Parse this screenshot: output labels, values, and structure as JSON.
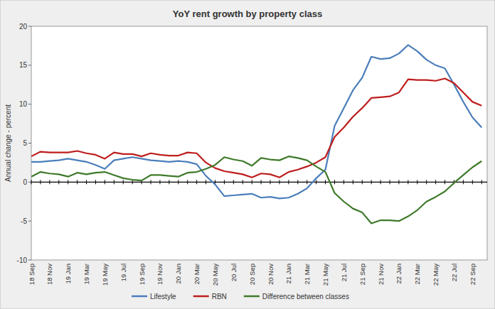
{
  "chart_data": {
    "type": "line",
    "title": "YoY rent growth by property class",
    "y_label": "Annual change - percent",
    "categories": [
      "18 Sep",
      null,
      "18 Nov",
      null,
      "19 Jan",
      null,
      "19 Mar",
      null,
      "19 May",
      null,
      "19 Jul",
      null,
      "19 Sep",
      null,
      "19 Nov",
      null,
      "20 Jan",
      null,
      "20 Mar",
      null,
      "20 May",
      null,
      "20 Jul",
      null,
      "20 Sep",
      null,
      "20 Nov",
      null,
      "21 Jan",
      null,
      "21 Mar",
      null,
      "21 May",
      null,
      "21 Jul",
      null,
      "21 Sep",
      null,
      "21 Nov",
      null,
      "22 Jan",
      null,
      "22 Mar",
      null,
      "22 May",
      null,
      "22 Jul",
      null,
      "22 Sep",
      null
    ],
    "series": [
      {
        "name": "Lifestyle",
        "color": "#4a7ebb",
        "values": [
          2.6,
          2.6,
          2.7,
          2.8,
          3.0,
          2.8,
          2.6,
          2.2,
          1.7,
          2.8,
          3.0,
          3.2,
          3.0,
          2.8,
          2.7,
          2.6,
          2.7,
          2.6,
          2.3,
          0.8,
          -0.3,
          -1.8,
          -1.7,
          -1.6,
          -1.5,
          -2.0,
          -1.9,
          -2.1,
          -2.0,
          -1.5,
          -0.8,
          0.5,
          1.6,
          7.2,
          9.5,
          11.8,
          13.4,
          16.1,
          15.8,
          15.9,
          16.5,
          17.6,
          16.8,
          15.7,
          15.0,
          14.6,
          12.5,
          10.3,
          8.3,
          7.0
        ]
      },
      {
        "name": "RBN",
        "color": "#be1e1e",
        "values": [
          3.3,
          3.9,
          3.8,
          3.8,
          3.8,
          4.0,
          3.7,
          3.5,
          3.0,
          3.8,
          3.6,
          3.6,
          3.3,
          3.7,
          3.5,
          3.4,
          3.4,
          3.8,
          3.7,
          2.5,
          1.8,
          1.4,
          1.2,
          1.0,
          0.6,
          1.1,
          1.0,
          0.6,
          1.3,
          1.6,
          2.0,
          2.5,
          3.2,
          5.8,
          7.0,
          8.4,
          9.5,
          10.8,
          10.9,
          11.0,
          11.5,
          13.2,
          13.1,
          13.1,
          13.0,
          13.3,
          12.7,
          11.5,
          10.3,
          9.8
        ]
      },
      {
        "name": "Difference between classes",
        "color": "#3f7a2a",
        "values": [
          0.7,
          1.3,
          1.1,
          1.0,
          0.7,
          1.2,
          1.0,
          1.2,
          1.3,
          0.9,
          0.5,
          0.3,
          0.2,
          0.9,
          0.9,
          0.8,
          0.7,
          1.2,
          1.3,
          1.7,
          2.2,
          3.2,
          2.9,
          2.7,
          2.1,
          3.1,
          2.9,
          2.8,
          3.3,
          3.1,
          2.8,
          2.0,
          1.3,
          -1.4,
          -2.5,
          -3.4,
          -3.9,
          -5.3,
          -4.9,
          -4.9,
          -5.0,
          -4.4,
          -3.6,
          -2.5,
          -1.9,
          -1.2,
          -0.1,
          0.9,
          1.9,
          2.7
        ]
      }
    ],
    "ylim": [
      -10,
      20
    ],
    "yticks": [
      -10,
      -5,
      0,
      5,
      10,
      15,
      20
    ],
    "grid": false,
    "legend": "bottom"
  }
}
